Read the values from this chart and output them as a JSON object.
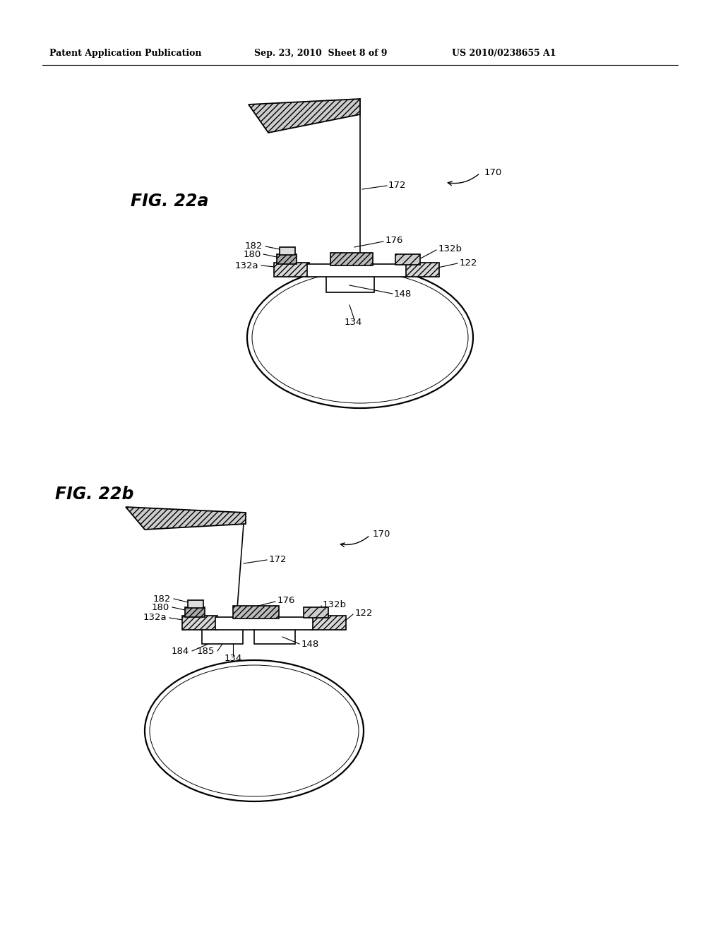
{
  "bg_color": "#ffffff",
  "line_color": "#000000",
  "header_left": "Patent Application Publication",
  "header_mid": "Sep. 23, 2010  Sheet 8 of 9",
  "header_right": "US 2010/0238655 A1",
  "fig_a_label": "FIG. 22a",
  "fig_b_label": "FIG. 22b",
  "lw": 1.3,
  "label_fs": 9.5
}
